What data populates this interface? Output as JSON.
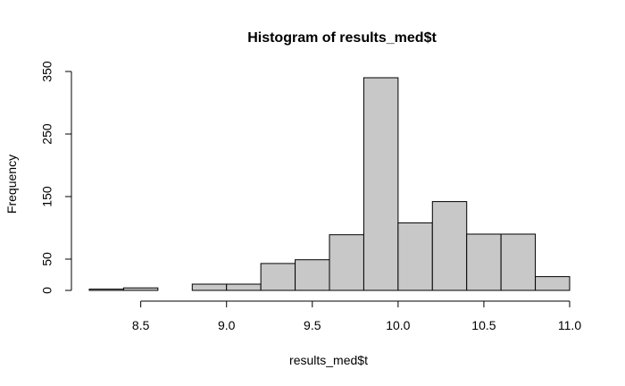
{
  "chart_data": {
    "type": "bar",
    "title": "Histogram of results_med$t",
    "xlabel": "results_med$t",
    "ylabel": "Frequency",
    "xlim": [
      8.2,
      11.0
    ],
    "ylim": [
      0,
      350
    ],
    "x_ticks": [
      8.5,
      9.0,
      9.5,
      10.0,
      10.5,
      11.0
    ],
    "x_tick_labels": [
      "8.5",
      "9.0",
      "9.5",
      "10.0",
      "10.5",
      "11.0"
    ],
    "y_ticks": [
      0,
      50,
      150,
      250,
      350
    ],
    "y_tick_labels": [
      "0",
      "50",
      "150",
      "250",
      "350"
    ],
    "bins": [
      {
        "start": 8.2,
        "end": 8.4,
        "value": 2
      },
      {
        "start": 8.4,
        "end": 8.6,
        "value": 4
      },
      {
        "start": 8.6,
        "end": 8.8,
        "value": 0
      },
      {
        "start": 8.8,
        "end": 9.0,
        "value": 10
      },
      {
        "start": 9.0,
        "end": 9.2,
        "value": 10
      },
      {
        "start": 9.2,
        "end": 9.4,
        "value": 43
      },
      {
        "start": 9.4,
        "end": 9.6,
        "value": 49
      },
      {
        "start": 9.6,
        "end": 9.8,
        "value": 89
      },
      {
        "start": 9.8,
        "end": 10.0,
        "value": 340
      },
      {
        "start": 10.0,
        "end": 10.2,
        "value": 108
      },
      {
        "start": 10.2,
        "end": 10.4,
        "value": 142
      },
      {
        "start": 10.4,
        "end": 10.6,
        "value": 90
      },
      {
        "start": 10.6,
        "end": 10.8,
        "value": 90
      },
      {
        "start": 10.8,
        "end": 11.0,
        "value": 22
      }
    ],
    "bar_fill": "#c8c8c8",
    "bar_stroke": "#000000",
    "grid": false
  }
}
